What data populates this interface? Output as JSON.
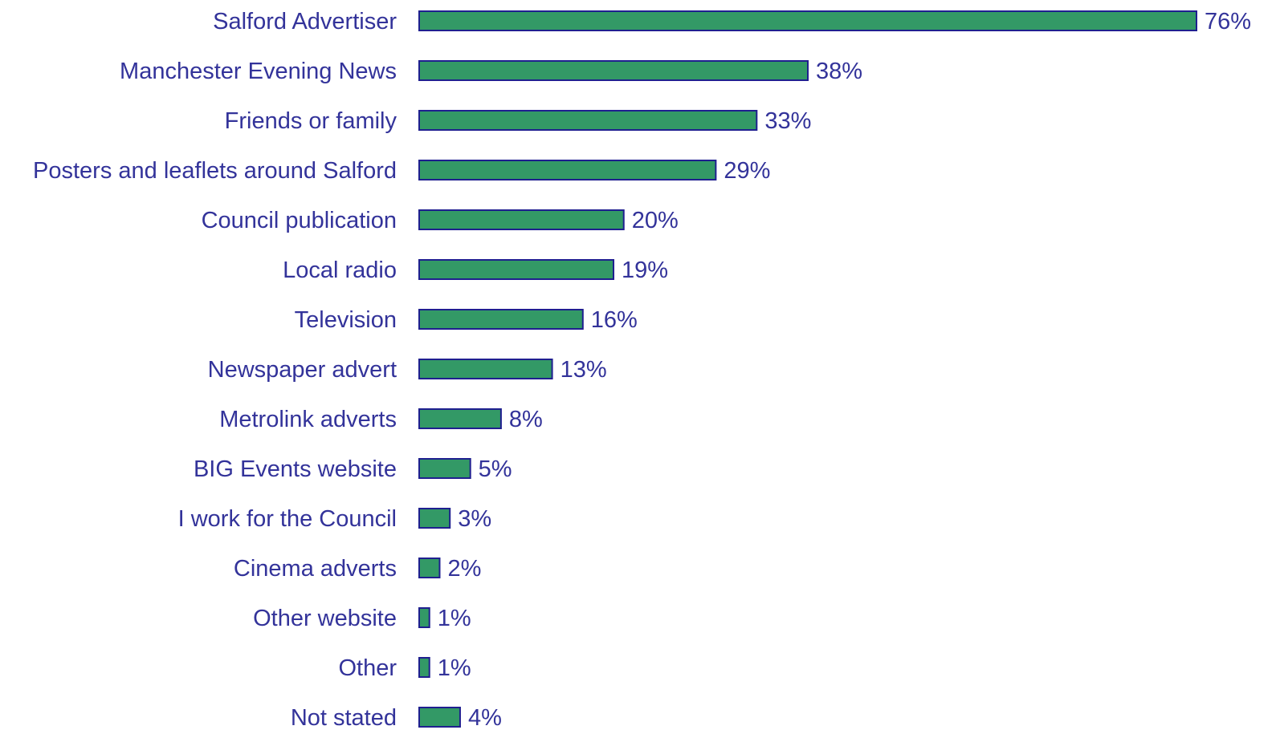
{
  "chart_data": {
    "type": "bar",
    "orientation": "horizontal",
    "categories": [
      "Salford Advertiser",
      "Manchester Evening News",
      "Friends or family",
      "Posters and leaflets around Salford",
      "Council publication",
      "Local radio",
      "Television",
      "Newspaper advert",
      "Metrolink adverts",
      "BIG Events website",
      "I work for the Council",
      "Cinema adverts",
      "Other website",
      "Other",
      "Not stated"
    ],
    "values": [
      76,
      38,
      33,
      29,
      20,
      19,
      16,
      13,
      8,
      5,
      3,
      2,
      1,
      1,
      4
    ],
    "value_labels": [
      "76%",
      "38%",
      "33%",
      "29%",
      "20%",
      "19%",
      "16%",
      "13%",
      "8%",
      "5%",
      "3%",
      "2%",
      "1%",
      "1%",
      "4%"
    ],
    "unit": "%",
    "xlim": [
      0,
      76
    ],
    "grid": false,
    "legend": "none",
    "colors": {
      "bar_fill": "#339966",
      "bar_stroke": "#1f1f8f",
      "text": "#33339a"
    }
  }
}
